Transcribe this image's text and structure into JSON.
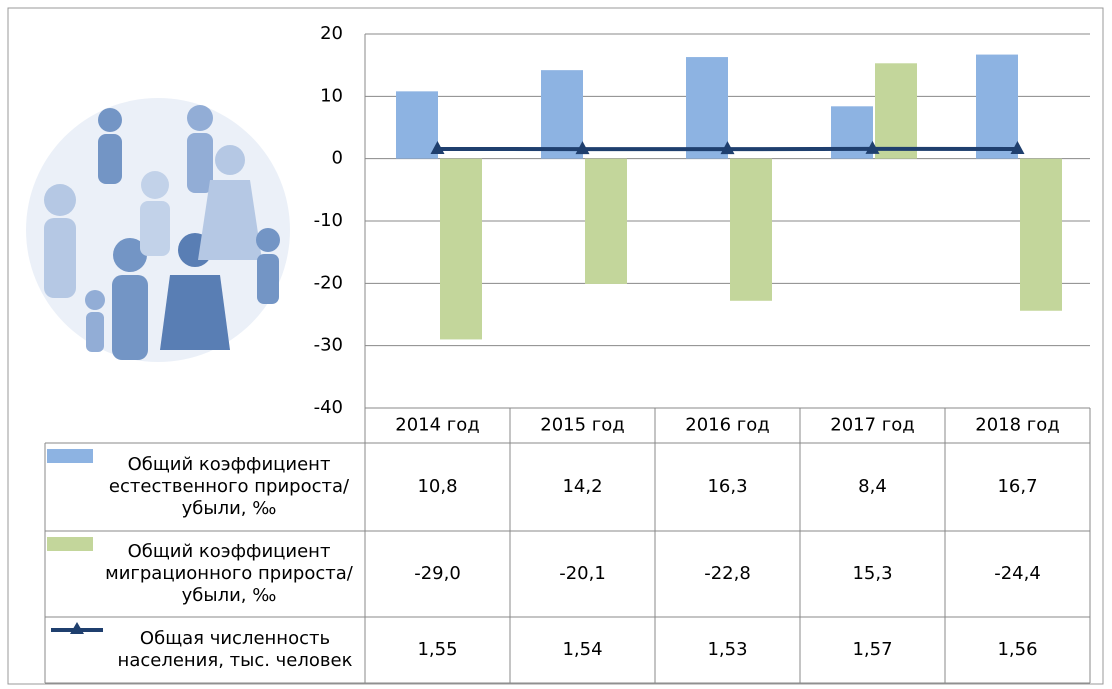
{
  "chart_data": {
    "type": "bar",
    "categories": [
      "2014 год",
      "2015 год",
      "2016 год",
      "2017 год",
      "2018 год"
    ],
    "series": [
      {
        "name": "Общий коэффициент естественного прироста/убыли, ‰",
        "color": "#8db3e2",
        "type": "bar",
        "values": [
          10.8,
          14.2,
          16.3,
          8.4,
          16.7
        ],
        "value_labels": [
          "10,8",
          "14,2",
          "16,3",
          "8,4",
          "16,7"
        ]
      },
      {
        "name": "Общий коэффициент миграционного прироста/убыли, ‰",
        "color": "#c3d69b",
        "type": "bar",
        "values": [
          -29.0,
          -20.1,
          -22.8,
          15.3,
          -24.4
        ],
        "value_labels": [
          "-29,0",
          "-20,1",
          "-22,8",
          "15,3",
          "-24,4"
        ]
      },
      {
        "name": "Общая численность населения, тыс. человек",
        "color": "#1f3f6e",
        "type": "line",
        "values": [
          1.55,
          1.54,
          1.53,
          1.57,
          1.56
        ],
        "value_labels": [
          "1,55",
          "1,54",
          "1,53",
          "1,57",
          "1,56"
        ]
      }
    ],
    "ylim": [
      -40,
      20
    ],
    "yticks": [
      20,
      10,
      0,
      -10,
      -20,
      -30,
      -40
    ],
    "grid": true
  }
}
